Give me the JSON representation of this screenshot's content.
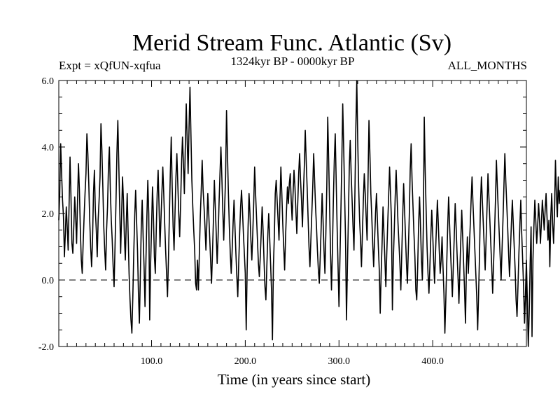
{
  "chart_data": {
    "type": "line",
    "title": "Merid Stream Func. Atlantic (Sv)",
    "experiment_label": "Expt = xQfUN-xqfua",
    "period_label": "1324kyr BP - 0000kyr BP",
    "months_label": "ALL_MONTHS",
    "xlabel": "Time (in years since start)",
    "ylabel": "",
    "xlim": [
      1,
      500
    ],
    "ylim": [
      -2.0,
      6.0
    ],
    "x_ticks": [
      100,
      200,
      300,
      400
    ],
    "x_tick_labels": [
      "100.0",
      "200.0",
      "300.0",
      "400.0"
    ],
    "y_ticks": [
      -2,
      0,
      2,
      4,
      6
    ],
    "y_tick_labels": [
      "-2.0",
      "0.0",
      "2.0",
      "4.0",
      "6.0"
    ],
    "reference_line": {
      "y": 0.0,
      "style": "dashed"
    },
    "series": [
      {
        "name": "Merid Stream Func. Atlantic",
        "color": "#000000",
        "x_start": 1,
        "x_step": 1,
        "values": [
          1.8,
          2.6,
          4.1,
          3.2,
          2.4,
          1.9,
          0.7,
          1.4,
          2.2,
          1.6,
          0.9,
          2.3,
          3.7,
          2.5,
          1.1,
          0.8,
          1.6,
          2.5,
          1.9,
          1.1,
          2.4,
          3.5,
          2.7,
          1.5,
          0.6,
          0.2,
          1.1,
          1.9,
          2.6,
          3.2,
          4.4,
          3.8,
          2.9,
          1.8,
          1.0,
          0.4,
          1.2,
          2.6,
          3.3,
          2.1,
          1.5,
          0.7,
          1.8,
          2.4,
          3.1,
          4.7,
          3.9,
          2.8,
          1.6,
          0.9,
          0.3,
          1.5,
          2.2,
          3.4,
          4.0,
          2.7,
          1.8,
          1.2,
          0.4,
          -0.2,
          1.0,
          2.3,
          3.8,
          4.8,
          3.5,
          2.2,
          0.8,
          1.9,
          3.1,
          2.4,
          1.3,
          0.6,
          1.7,
          2.6,
          1.4,
          0.2,
          -0.6,
          -1.2,
          -1.6,
          -0.5,
          0.8,
          1.9,
          2.7,
          1.8,
          0.9,
          -0.4,
          -1.3,
          0.1,
          1.6,
          2.4,
          1.3,
          0.4,
          -0.8,
          0.6,
          1.9,
          3.0,
          2.0,
          -1.2,
          0.5,
          1.6,
          2.8,
          1.9,
          0.7,
          0.2,
          1.5,
          2.6,
          3.3,
          2.2,
          1.0,
          1.8,
          2.6,
          3.4,
          2.6,
          1.7,
          0.9,
          0.2,
          -0.5,
          0.6,
          1.9,
          3.2,
          4.3,
          2.8,
          1.6,
          0.9,
          2.0,
          3.1,
          3.8,
          2.9,
          2.0,
          1.3,
          2.3,
          3.5,
          4.3,
          3.5,
          2.6,
          4.0,
          5.3,
          4.2,
          3.2,
          4.6,
          5.8,
          4.4,
          3.0,
          2.2,
          1.5,
          0.9,
          -0.1,
          -0.3,
          0.6,
          -0.3,
          0.8,
          1.9,
          2.7,
          3.6,
          2.7,
          2.2,
          1.6,
          0.9,
          1.7,
          2.6,
          2.0,
          1.3,
          0.6,
          -0.1,
          0.8,
          1.8,
          3.0,
          2.2,
          1.4,
          0.5,
          1.3,
          2.3,
          3.2,
          4.0,
          3.1,
          2.1,
          1.2,
          2.2,
          3.1,
          5.1,
          3.8,
          2.6,
          1.6,
          0.8,
          0.2,
          0.9,
          1.7,
          2.4,
          1.6,
          0.8,
          0.1,
          -0.5,
          0.5,
          1.4,
          2.2,
          2.7,
          2.1,
          1.4,
          0.8,
          0.2,
          -1.5,
          0.3,
          1.6,
          2.6,
          2.0,
          1.2,
          0.6,
          1.4,
          2.3,
          3.4,
          2.6,
          1.9,
          1.2,
          0.5,
          0.1,
          0.7,
          1.4,
          2.2,
          1.5,
          0.6,
          -0.2,
          -0.6,
          0.4,
          1.3,
          2.0,
          1.3,
          0.5,
          -0.3,
          -1.8,
          0.4,
          1.3,
          2.6,
          3.0,
          2.4,
          1.8,
          1.2,
          2.4,
          3.4,
          2.6,
          1.7,
          1.0,
          0.3,
          1.3,
          2.1,
          2.8,
          2.3,
          2.9,
          3.2,
          2.4,
          1.8,
          2.6,
          3.3,
          2.8,
          2.1,
          1.4,
          2.3,
          3.2,
          3.8,
          3.0,
          2.4,
          1.6,
          2.6,
          3.4,
          4.5,
          3.6,
          2.8,
          1.9,
          1.0,
          0.4,
          1.2,
          2.0,
          2.8,
          3.8,
          3.0,
          2.2,
          1.6,
          0.9,
          0.3,
          -0.1,
          0.7,
          1.6,
          2.6,
          1.8,
          0.9,
          0.2,
          1.4,
          2.8,
          4.9,
          3.6,
          2.2,
          0.8,
          -0.3,
          0.9,
          2.4,
          3.6,
          4.4,
          3.0,
          1.6,
          0.4,
          -0.8,
          0.6,
          2.0,
          3.5,
          5.3,
          4.0,
          2.6,
          1.2,
          -1.2,
          0.4,
          1.8,
          3.4,
          4.2,
          3.2,
          2.4,
          1.6,
          0.9,
          2.6,
          4.6,
          6.0,
          4.2,
          2.8,
          1.8,
          1.2,
          0.4,
          1.4,
          2.4,
          3.2,
          2.6,
          1.9,
          1.2,
          3.0,
          4.8,
          3.8,
          2.6,
          1.9,
          1.1,
          0.4,
          1.2,
          2.0,
          2.6,
          1.8,
          1.0,
          0.3,
          -1.0,
          0.2,
          1.1,
          2.2,
          1.4,
          0.6,
          -0.2,
          0.8,
          1.7,
          2.5,
          3.4,
          2.6,
          1.8,
          -0.9,
          0.6,
          1.5,
          2.5,
          3.3,
          2.5,
          1.7,
          1.1,
          0.5,
          -0.3,
          0.8,
          1.9,
          2.9,
          2.1,
          1.3,
          0.5,
          -0.1,
          0.9,
          1.9,
          3.3,
          4.1,
          3.0,
          2.2,
          1.4,
          0.7,
          -0.3,
          -0.6,
          0.4,
          1.7,
          2.5,
          1.6,
          0.6,
          0.0,
          1.6,
          4.9,
          3.3,
          2.1,
          1.0,
          0.2,
          -0.4,
          0.4,
          1.3,
          2.1,
          1.4,
          0.6,
          -0.1,
          0.8,
          1.6,
          2.4,
          1.7,
          0.9,
          0.2,
          0.6,
          1.3,
          0.4,
          -0.4,
          -1.6,
          -0.6,
          0.5,
          1.6,
          2.5,
          1.7,
          0.9,
          0.2,
          -0.5,
          0.4,
          1.3,
          2.3,
          1.6,
          0.8,
          0.1,
          -0.7,
          0.3,
          1.2,
          2.1,
          1.3,
          0.5,
          -0.3,
          -1.3,
          0.4,
          1.3,
          0.2,
          0.9,
          1.6,
          2.4,
          3.1,
          2.3,
          1.6,
          0.9,
          0.2,
          -0.5,
          -1.5,
          -0.4,
          0.8,
          2.3,
          3.1,
          2.4,
          1.7,
          1.0,
          0.3,
          1.2,
          2.2,
          3.2,
          2.5,
          1.8,
          1.1,
          0.4,
          -0.4,
          0.5,
          1.4,
          2.4,
          3.6,
          2.8,
          2.1,
          1.4,
          0.7,
          0.0,
          0.9,
          1.8,
          2.8,
          3.8,
          3.0,
          2.3,
          1.6,
          0.8,
          0.1,
          0.9,
          1.7,
          2.4,
          1.7,
          1.0,
          0.3,
          -0.6,
          -1.1,
          -0.2,
          0.8,
          1.6,
          2.4,
          1.4,
          0.6,
          -0.2,
          -1.3,
          -0.4,
          0.6,
          -0.6,
          -2.0,
          -1.0,
          0.5,
          1.6,
          -1.7,
          0.6,
          1.6,
          2.4,
          1.8,
          1.1,
          1.6,
          2.3,
          1.8,
          1.1,
          1.7,
          2.4,
          2.0,
          1.5,
          2.1,
          2.6,
          1.9,
          1.2,
          1.8,
          0.4,
          1.9,
          2.6,
          1.7,
          1.1,
          2.0,
          3.6,
          2.6,
          1.9,
          3.1,
          2.3,
          2.7,
          2.0
        ]
      }
    ]
  }
}
